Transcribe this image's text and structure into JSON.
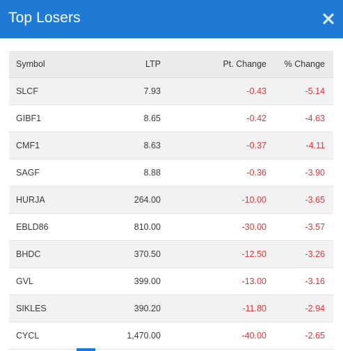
{
  "header": {
    "title": "Top Losers",
    "close_icon": "close-icon"
  },
  "colors": {
    "header_bg": "#1f7ad6",
    "negative": "#e0363a"
  },
  "table": {
    "columns": {
      "symbol": "Symbol",
      "ltp": "LTP",
      "pt_change": "Pt. Change",
      "pct_change": "% Change"
    },
    "rows": [
      {
        "symbol": "SLCF",
        "ltp": "7.93",
        "pt_change": "-0.43",
        "pct_change": "-5.14"
      },
      {
        "symbol": "GIBF1",
        "ltp": "8.65",
        "pt_change": "-0.42",
        "pct_change": "-4.63"
      },
      {
        "symbol": "CMF1",
        "ltp": "8.63",
        "pt_change": "-0.37",
        "pct_change": "-4.11"
      },
      {
        "symbol": "SAGF",
        "ltp": "8.88",
        "pt_change": "-0.36",
        "pct_change": "-3.90"
      },
      {
        "symbol": "HURJA",
        "ltp": "264.00",
        "pt_change": "-10.00",
        "pct_change": "-3.65"
      },
      {
        "symbol": "EBLD86",
        "ltp": "810.00",
        "pt_change": "-30.00",
        "pct_change": "-3.57"
      },
      {
        "symbol": "BHDC",
        "ltp": "370.50",
        "pt_change": "-12.50",
        "pct_change": "-3.26"
      },
      {
        "symbol": "GVL",
        "ltp": "399.00",
        "pt_change": "-13.00",
        "pct_change": "-3.16"
      },
      {
        "symbol": "SIKLES",
        "ltp": "390.20",
        "pt_change": "-11.80",
        "pct_change": "-2.94"
      },
      {
        "symbol": "CYCL",
        "ltp": "1,470.00",
        "pt_change": "-40.00",
        "pct_change": "-2.65"
      }
    ]
  }
}
